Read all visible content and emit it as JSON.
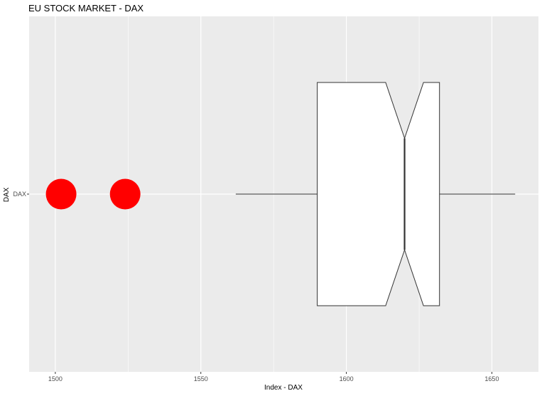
{
  "chart_data": {
    "type": "boxplot",
    "title": "EU STOCK MARKET - DAX",
    "xlabel": "Index - DAX",
    "ylabel": "DAX",
    "orientation": "horizontal",
    "notched": true,
    "categories": [
      "DAX"
    ],
    "xlim": [
      1491,
      1666
    ],
    "x_ticks": [
      1500,
      1550,
      1600,
      1650
    ],
    "x_minor_ticks": [
      1525,
      1575,
      1625
    ],
    "grid": true,
    "panel_background": "#ebebeb",
    "grid_color": "#ffffff",
    "box_fill": "#ffffff",
    "box_outline": "#333333",
    "outlier_color": "#ff0000",
    "boxes": [
      {
        "name": "DAX",
        "whisker_low": 1562,
        "q1": 1590,
        "median": 1620,
        "q3": 1632,
        "whisker_high": 1658,
        "notch_low": 1613.5,
        "notch_high": 1626.5,
        "outliers": [
          1502,
          1524
        ]
      }
    ]
  }
}
